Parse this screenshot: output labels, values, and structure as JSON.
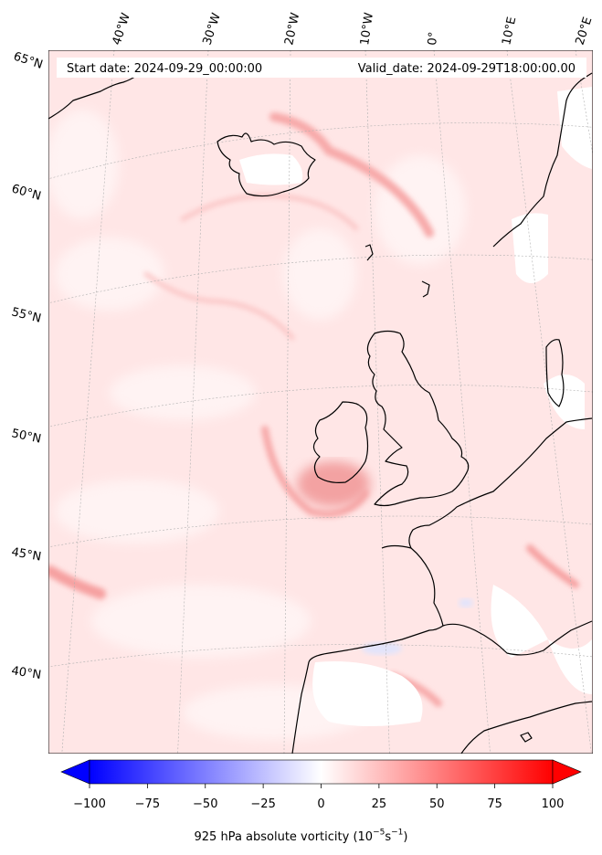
{
  "header": {
    "start_date": "Start date: 2024-09-29_00:00:00",
    "valid_date": "Valid_date: 2024-09-29T18:00:00.00"
  },
  "lon_labels": [
    "40°W",
    "30°W",
    "20°W",
    "10°W",
    "0°",
    "10°E",
    "20°E"
  ],
  "lat_labels": [
    "65°N",
    "60°N",
    "55°N",
    "50°N",
    "45°N",
    "40°N"
  ],
  "colorbar": {
    "ticks": [
      "−100",
      "−75",
      "−50",
      "−25",
      "0",
      "25",
      "50",
      "75",
      "100"
    ],
    "label_prefix": "925 hPa absolute vorticity (10",
    "label_exp1": "−5",
    "label_mid": "s",
    "label_exp2": "−1",
    "label_suffix": ")",
    "range": [
      -100,
      100
    ],
    "negative_color": "#0000ff",
    "positive_color": "#ff0000",
    "zero_color": "#ffffff"
  },
  "colors": {
    "land_outline": "#000000",
    "field_base": "#ffe3e3"
  }
}
